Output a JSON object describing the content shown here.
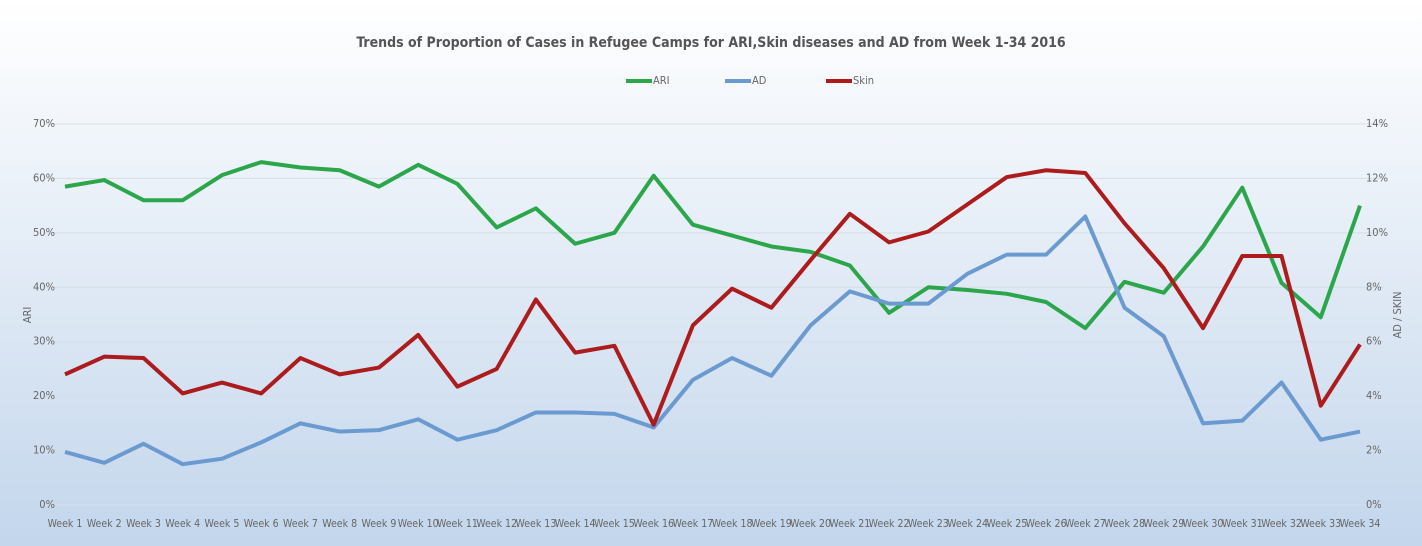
{
  "chart_data": {
    "type": "line",
    "title": "Trends of Proportion of Cases in Refugee Camps for ARI,Skin diseases and AD from Week 1-34 2016",
    "y_label": "ARI",
    "y2_label": "AD / SKIN",
    "categories": [
      "Week 1",
      "Week 2",
      "Week 3",
      "Week 4",
      "Week 5",
      "Week 6",
      "Week 7",
      "Week 8",
      "Week 9",
      "Week 10",
      "Week 11",
      "Week 12",
      "Week 13",
      "Week 14",
      "Week 15",
      "Week 16",
      "Week 17",
      "Week 18",
      "Week 19",
      "Week 20",
      "Week 21",
      "Week 22",
      "Week 23",
      "Week 24",
      "Week 25",
      "Week 26",
      "Week 27",
      "Week 28",
      "Week 29",
      "Week 30",
      "Week 31",
      "Week 32",
      "Week 33",
      "Week 34"
    ],
    "series": [
      {
        "name": "ARI",
        "color": "#2ca64b",
        "values": [
          58.5,
          59.7,
          56,
          56,
          60.6,
          63,
          62,
          61.5,
          58.5,
          62.5,
          59,
          51,
          54.5,
          48,
          50,
          60.5,
          51.5,
          49.5,
          47.5,
          46.5,
          44,
          35.3,
          40,
          39.5,
          38.8,
          37.3,
          32.5,
          41,
          39,
          47.5,
          58.3,
          40.8,
          34.5,
          55
        ]
      },
      {
        "name": "AD",
        "color": "#6b9ad0",
        "axis": "y2",
        "values": [
          1.95,
          1.55,
          2.25,
          1.5,
          1.7,
          2.3,
          3.0,
          2.7,
          2.75,
          3.15,
          2.4,
          2.75,
          3.4,
          3.4,
          3.35,
          2.85,
          4.6,
          5.4,
          4.75,
          6.6,
          7.85,
          7.4,
          7.4,
          8.5,
          9.2,
          9.2,
          10.6,
          7.25,
          6.2,
          3.0,
          3.1,
          4.5,
          2.4,
          2.7
        ]
      },
      {
        "name": "Skin",
        "color": "#ac1c1c",
        "axis": "y2",
        "values": [
          4.8,
          5.45,
          5.4,
          4.1,
          4.5,
          4.1,
          5.4,
          4.8,
          5.05,
          6.25,
          4.35,
          5.0,
          7.55,
          5.6,
          5.85,
          2.95,
          6.6,
          7.95,
          7.25,
          9.0,
          10.7,
          9.65,
          10.05,
          11.05,
          12.05,
          12.3,
          12.2,
          10.35,
          8.7,
          6.5,
          9.15,
          9.15,
          3.65,
          5.9
        ]
      }
    ],
    "ylim": [
      0,
      70
    ],
    "yticks": [
      {
        "value": 0,
        "label": "0%"
      },
      {
        "value": 10,
        "label": "10%"
      },
      {
        "value": 20,
        "label": "20%"
      },
      {
        "value": 30,
        "label": "30%"
      },
      {
        "value": 40,
        "label": "40%"
      },
      {
        "value": 50,
        "label": "50%"
      },
      {
        "value": 60,
        "label": "60%"
      },
      {
        "value": 70,
        "label": "70%"
      }
    ],
    "y2lim": [
      0,
      14
    ],
    "y2ticks": [
      {
        "value": 0,
        "label": "0%"
      },
      {
        "value": 2,
        "label": "2%"
      },
      {
        "value": 4,
        "label": "4%"
      },
      {
        "value": 6,
        "label": "6%"
      },
      {
        "value": 8,
        "label": "8%"
      },
      {
        "value": 10,
        "label": "10%"
      },
      {
        "value": 12,
        "label": "12%"
      },
      {
        "value": 14,
        "label": "14%"
      }
    ],
    "grid": true,
    "legend": "top"
  }
}
